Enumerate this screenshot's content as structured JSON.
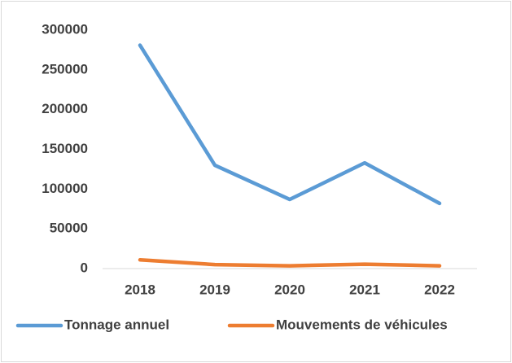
{
  "chart_data": {
    "type": "line",
    "categories": [
      "2018",
      "2019",
      "2020",
      "2021",
      "2022"
    ],
    "series": [
      {
        "name": "Tonnage annuel",
        "color": "#5b9bd5",
        "values": [
          281000,
          130000,
          87000,
          133000,
          82000
        ]
      },
      {
        "name": "Mouvements de véhicules",
        "color": "#ed7d31",
        "values": [
          11000,
          5000,
          3500,
          5500,
          3500
        ]
      }
    ],
    "ylim": [
      0,
      300000
    ],
    "yticks": [
      0,
      50000,
      100000,
      150000,
      200000,
      250000,
      300000
    ],
    "grid": false,
    "legend": "bottom"
  }
}
